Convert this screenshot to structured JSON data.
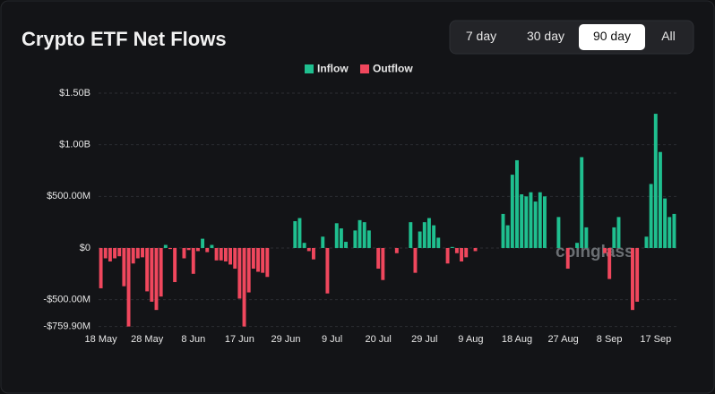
{
  "chart_data": {
    "type": "bar",
    "title": "Crypto ETF Net Flows",
    "legend_items": [
      {
        "name": "Inflow",
        "color": "#1fbf8f"
      },
      {
        "name": "Outflow",
        "color": "#f0475d"
      }
    ],
    "legend_position": "top",
    "categories": [
      "18 May",
      null,
      null,
      null,
      null,
      null,
      null,
      null,
      null,
      null,
      "28 May",
      null,
      null,
      null,
      null,
      null,
      null,
      null,
      null,
      null,
      "8 Jun",
      null,
      null,
      null,
      null,
      null,
      null,
      null,
      null,
      null,
      "17 Jun",
      null,
      null,
      null,
      null,
      null,
      null,
      null,
      null,
      null,
      "29 Jun",
      null,
      null,
      null,
      null,
      null,
      null,
      null,
      null,
      null,
      "9 Jul",
      null,
      null,
      null,
      null,
      null,
      null,
      null,
      null,
      null,
      "20 Jul",
      null,
      null,
      null,
      null,
      null,
      null,
      null,
      null,
      null,
      "29 Jul",
      null,
      null,
      null,
      null,
      null,
      null,
      null,
      null,
      null,
      "9 Aug",
      null,
      null,
      null,
      null,
      null,
      null,
      null,
      null,
      null,
      "18 Aug",
      null,
      null,
      null,
      null,
      null,
      null,
      null,
      null,
      null,
      "27 Aug",
      null,
      null,
      null,
      null,
      null,
      null,
      null,
      null,
      null,
      "8 Sep",
      null,
      null,
      null,
      null,
      null,
      null,
      null,
      null,
      null,
      "17 Sep",
      null,
      null,
      null,
      null
    ],
    "values": [
      -390,
      -100,
      -130,
      -100,
      -80,
      -370,
      -760,
      -150,
      -100,
      -90,
      -420,
      -520,
      -600,
      -470,
      30,
      -10,
      -330,
      0,
      -100,
      -20,
      -250,
      -30,
      90,
      -40,
      30,
      -120,
      -120,
      -130,
      -160,
      -200,
      -490,
      -760,
      -430,
      -200,
      -230,
      -240,
      -280,
      0,
      0,
      0,
      0,
      0,
      260,
      290,
      50,
      -30,
      -110,
      0,
      110,
      -440,
      0,
      240,
      190,
      60,
      0,
      170,
      270,
      250,
      170,
      0,
      -200,
      -310,
      0,
      0,
      -50,
      0,
      0,
      250,
      -240,
      160,
      250,
      290,
      220,
      100,
      0,
      -150,
      10,
      -50,
      -130,
      -90,
      0,
      -30,
      0,
      0,
      0,
      0,
      0,
      330,
      220,
      710,
      850,
      520,
      500,
      540,
      450,
      540,
      500,
      0,
      0,
      300,
      0,
      -200,
      0,
      50,
      880,
      200,
      0,
      0,
      0,
      -50,
      -300,
      200,
      300,
      0,
      0,
      -600,
      -520,
      0,
      110,
      620,
      1300,
      930,
      480,
      300,
      330
    ],
    "ylim": [
      -759.9,
      1500
    ],
    "yticks": [
      {
        "value": 1500,
        "label": "$1.50B"
      },
      {
        "value": 1000,
        "label": "$1.00B"
      },
      {
        "value": 500,
        "label": "$500.00M"
      },
      {
        "value": 0,
        "label": "$0"
      },
      {
        "value": -500,
        "label": "-$500.00M"
      },
      {
        "value": -759.9,
        "label": "-$759.90M"
      }
    ],
    "grid": true,
    "watermark": "coinglass"
  },
  "controls": {
    "range_buttons": [
      "7 day",
      "30 day",
      "90 day",
      "All"
    ],
    "selected": 2
  }
}
